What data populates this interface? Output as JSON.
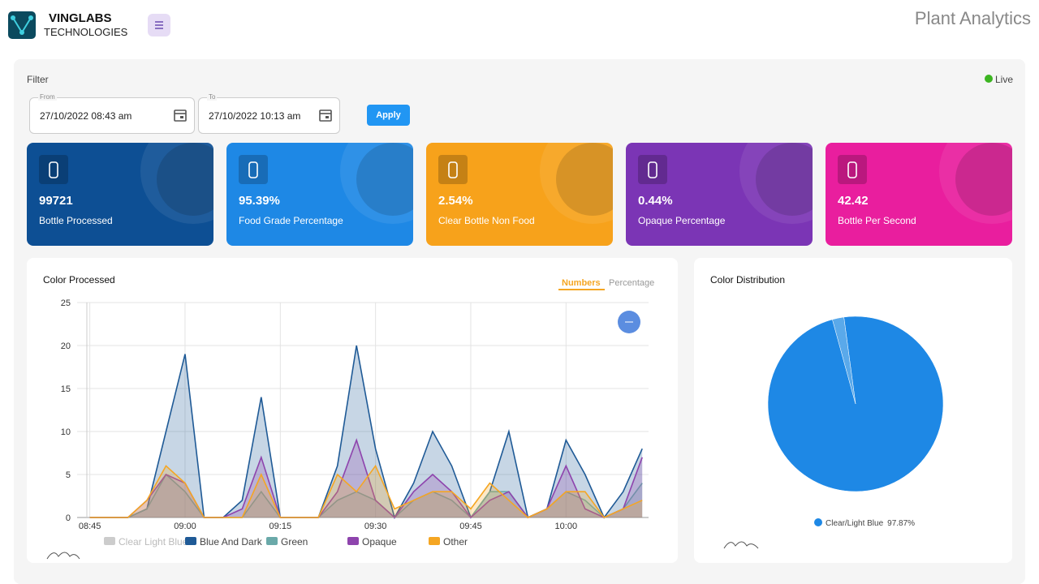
{
  "header": {
    "brand": "VINGLABS",
    "brand_sub": "TECHNOLOGIES",
    "page_title": "Plant Analytics"
  },
  "filter": {
    "title": "Filter",
    "status": "Live",
    "from_label": "From",
    "from_value": "27/10/2022 08:43 am",
    "to_label": "To",
    "to_value": "27/10/2022 10:13 am",
    "apply": "Apply"
  },
  "cards": [
    {
      "value": "99721",
      "label": "Bottle Processed",
      "color": "#0d4f94"
    },
    {
      "value": "95.39%",
      "label": "Food Grade Percentage",
      "color": "#1e88e5"
    },
    {
      "value": "2.54%",
      "label": "Clear Bottle Non Food",
      "color": "#f7a21b"
    },
    {
      "value": "0.44%",
      "label": "Opaque Percentage",
      "color": "#7b35b5"
    },
    {
      "value": "42.42",
      "label": "Bottle Per Second",
      "color": "#e91e9e"
    }
  ],
  "chart_data": [
    {
      "type": "area",
      "title": "Color Processed",
      "toggles": [
        "Numbers",
        "Percentage"
      ],
      "x": [
        "08:45",
        "08:48",
        "08:51",
        "08:54",
        "08:57",
        "09:00",
        "09:03",
        "09:06",
        "09:09",
        "09:12",
        "09:15",
        "09:18",
        "09:21",
        "09:24",
        "09:27",
        "09:30",
        "09:33",
        "09:36",
        "09:39",
        "09:42",
        "09:45",
        "09:48",
        "09:51",
        "09:54",
        "09:57",
        "10:00",
        "10:03",
        "10:06",
        "10:09",
        "10:12"
      ],
      "xlim": [
        "08:43",
        "10:13"
      ],
      "xticks": [
        "08:45",
        "09:00",
        "09:15",
        "09:30",
        "09:45",
        "10:00"
      ],
      "ylim": [
        0,
        25
      ],
      "yticks": [
        0,
        5,
        10,
        15,
        20,
        25
      ],
      "grid": true,
      "series": [
        {
          "name": "Clear Light Blue",
          "color": "#bdbdbd",
          "visible": false
        },
        {
          "name": "Blue And Dark",
          "color": "#1f5a96",
          "values": [
            0,
            0,
            0,
            1,
            10,
            19,
            0,
            0,
            2,
            14,
            0,
            0,
            0,
            6,
            20,
            8,
            0,
            4,
            10,
            6,
            0,
            3,
            10,
            0,
            1,
            9,
            5,
            0,
            3,
            8
          ]
        },
        {
          "name": "Green",
          "color": "#6aa9a9",
          "values": [
            0,
            0,
            0,
            1,
            5,
            3,
            0,
            0,
            0,
            3,
            0,
            0,
            0,
            2,
            3,
            2,
            0,
            2,
            3,
            2,
            0,
            3,
            3,
            0,
            1,
            3,
            2,
            0,
            1,
            4
          ]
        },
        {
          "name": "Opaque",
          "color": "#8e44ad",
          "values": [
            0,
            0,
            0,
            2,
            5,
            4,
            0,
            0,
            1,
            7,
            0,
            0,
            0,
            3,
            9,
            2,
            0,
            3,
            5,
            3,
            0,
            2,
            3,
            0,
            1,
            6,
            1,
            0,
            1,
            7
          ]
        },
        {
          "name": "Other",
          "color": "#f5a623",
          "values": [
            0,
            0,
            0,
            2,
            6,
            4,
            0,
            0,
            0,
            5,
            0,
            0,
            0,
            5,
            3,
            6,
            1,
            2,
            3,
            3,
            1,
            4,
            2,
            0,
            1,
            3,
            3,
            0,
            1,
            2
          ]
        }
      ]
    },
    {
      "type": "pie",
      "title": "Color Distribution",
      "categories": [
        "Clear/Light Blue",
        null
      ],
      "values": [
        97.87,
        2.13
      ],
      "value_labels": [
        "97.87%",
        null
      ],
      "colors": [
        "#1e88e5",
        "#5aa9ea"
      ]
    }
  ]
}
